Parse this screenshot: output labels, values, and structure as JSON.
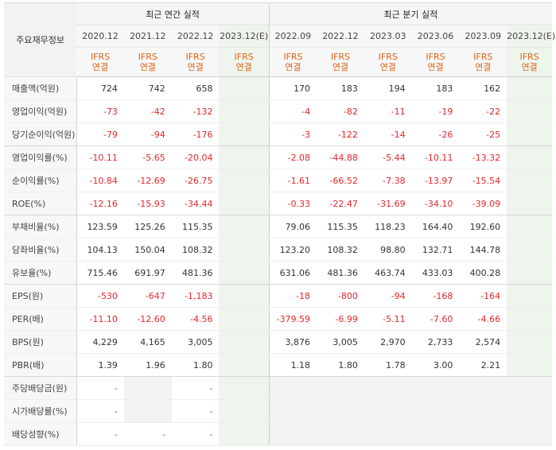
{
  "header": {
    "row_label_title": "주요재무정보",
    "annual_title": "최근 연간 실적",
    "quarterly_title": "최근 분기 실적",
    "annual_periods": [
      "2020.12",
      "2021.12",
      "2022.12",
      "2023.12(E)"
    ],
    "quarterly_periods": [
      "2022.09",
      "2022.12",
      "2023.03",
      "2023.06",
      "2023.09",
      "2023.12(E)"
    ],
    "type_line1": "IFRS",
    "type_line2": "연결"
  },
  "rows": [
    {
      "label": "매출액(억원)",
      "values": [
        "724",
        "742",
        "658",
        "",
        "170",
        "183",
        "194",
        "183",
        "162",
        ""
      ]
    },
    {
      "label": "영업이익(억원)",
      "values": [
        "-73",
        "-42",
        "-132",
        "",
        "-4",
        "-82",
        "-11",
        "-19",
        "-22",
        ""
      ]
    },
    {
      "label": "당기순이익(억원)",
      "values": [
        "-79",
        "-94",
        "-176",
        "",
        "-3",
        "-122",
        "-14",
        "-26",
        "-25",
        ""
      ]
    },
    {
      "label": "영업이익률(%)",
      "values": [
        "-10.11",
        "-5.65",
        "-20.04",
        "",
        "-2.08",
        "-44.88",
        "-5.44",
        "-10.11",
        "-13.32",
        ""
      ]
    },
    {
      "label": "순이익률(%)",
      "values": [
        "-10.84",
        "-12.69",
        "-26.75",
        "",
        "-1.61",
        "-66.52",
        "-7.38",
        "-13.97",
        "-15.54",
        ""
      ]
    },
    {
      "label": "ROE(%)",
      "values": [
        "-12.16",
        "-15.93",
        "-34.44",
        "",
        "-0.33",
        "-22.47",
        "-31.69",
        "-34.10",
        "-39.09",
        ""
      ]
    },
    {
      "label": "부채비율(%)",
      "values": [
        "123.59",
        "125.26",
        "115.35",
        "",
        "79.06",
        "115.35",
        "118.23",
        "164.40",
        "192.60",
        ""
      ]
    },
    {
      "label": "당좌비율(%)",
      "values": [
        "104.13",
        "150.04",
        "108.32",
        "",
        "123.20",
        "108.32",
        "98.80",
        "132.71",
        "144.78",
        ""
      ]
    },
    {
      "label": "유보율(%)",
      "values": [
        "715.46",
        "691.97",
        "481.36",
        "",
        "631.06",
        "481.36",
        "463.74",
        "433.03",
        "400.28",
        ""
      ]
    },
    {
      "label": "EPS(원)",
      "values": [
        "-530",
        "-647",
        "-1,183",
        "",
        "-18",
        "-800",
        "-94",
        "-168",
        "-164",
        ""
      ]
    },
    {
      "label": "PER(배)",
      "values": [
        "-11.10",
        "-12.60",
        "-4.56",
        "",
        "-379.59",
        "-6.99",
        "-5.11",
        "-7.60",
        "-4.66",
        ""
      ]
    },
    {
      "label": "BPS(원)",
      "values": [
        "4,229",
        "4,165",
        "3,005",
        "",
        "3,876",
        "3,005",
        "2,970",
        "2,733",
        "2,574",
        ""
      ]
    },
    {
      "label": "PBR(배)",
      "values": [
        "1.39",
        "1.96",
        "1.80",
        "",
        "1.18",
        "1.80",
        "1.78",
        "3.00",
        "2.21",
        ""
      ]
    },
    {
      "label": "주당배당금(원)",
      "values": [
        "-",
        "",
        "-",
        "",
        "",
        "",
        "",
        "",
        "",
        ""
      ]
    },
    {
      "label": "시가배당률(%)",
      "values": [
        "-",
        "",
        "-",
        "",
        "",
        "",
        "",
        "",
        "",
        ""
      ]
    },
    {
      "label": "배당성향(%)",
      "values": [
        "-",
        "-",
        "-",
        "",
        "",
        "",
        "",
        "",
        "",
        ""
      ]
    }
  ],
  "colors": {
    "negative": "#e6262a",
    "ifrs": "#e06214",
    "estimate_bg": "#eef5ec"
  }
}
